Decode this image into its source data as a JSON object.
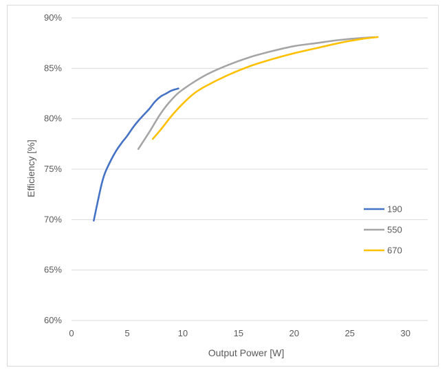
{
  "chart_data": {
    "type": "line",
    "title": "",
    "xlabel": "Output Power [W]",
    "ylabel": "Efficiency [%]",
    "xlim": [
      0,
      32
    ],
    "ylim": [
      60,
      90
    ],
    "x_ticks": [
      0,
      5,
      10,
      15,
      20,
      25,
      30
    ],
    "y_ticks": [
      60,
      65,
      70,
      75,
      80,
      85,
      90
    ],
    "x_tick_labels": [
      "0",
      "5",
      "10",
      "15",
      "20",
      "25",
      "30"
    ],
    "y_tick_labels": [
      "60%",
      "65%",
      "70%",
      "75%",
      "80%",
      "85%",
      "90%"
    ],
    "grid": "horizontal",
    "legend_position": "right",
    "series": [
      {
        "name": "190",
        "color": "#4472c4",
        "x": [
          2.0,
          2.3,
          2.7,
          3.0,
          3.5,
          4.0,
          4.5,
          5.0,
          5.5,
          6.0,
          6.5,
          7.0,
          7.5,
          8.0,
          8.5,
          9.0,
          9.6
        ],
        "y": [
          69.9,
          71.5,
          73.5,
          74.6,
          75.8,
          76.8,
          77.6,
          78.3,
          79.1,
          79.8,
          80.4,
          81.0,
          81.7,
          82.2,
          82.5,
          82.8,
          83.0
        ]
      },
      {
        "name": "550",
        "color": "#a5a5a5",
        "x": [
          6.0,
          7.0,
          8.0,
          9.0,
          10.0,
          12.0,
          14.0,
          16.0,
          18.0,
          20.0,
          22.0,
          24.0,
          26.0,
          27.5
        ],
        "y": [
          77.0,
          78.7,
          80.5,
          81.9,
          82.9,
          84.3,
          85.3,
          86.1,
          86.7,
          87.2,
          87.5,
          87.8,
          88.0,
          88.1
        ]
      },
      {
        "name": "670",
        "color": "#ffc000",
        "x": [
          7.3,
          8.0,
          9.0,
          10.0,
          11.0,
          12.0,
          14.0,
          16.0,
          18.0,
          20.0,
          22.0,
          24.0,
          26.0,
          27.5
        ],
        "y": [
          78.0,
          78.9,
          80.3,
          81.5,
          82.5,
          83.2,
          84.3,
          85.2,
          85.9,
          86.5,
          87.0,
          87.5,
          87.9,
          88.1
        ]
      }
    ]
  }
}
